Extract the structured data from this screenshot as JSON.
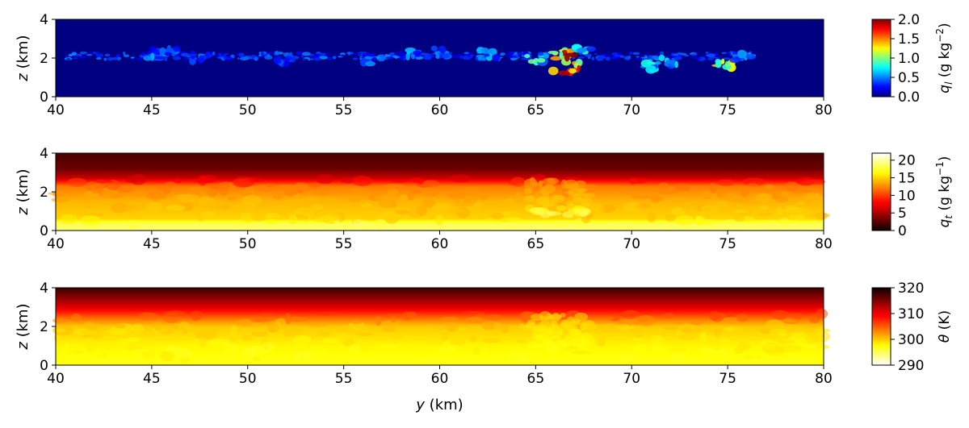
{
  "chart_data": [
    {
      "type": "heatmap",
      "field": "liquid water mixing ratio",
      "x_ticks": [
        40,
        45,
        50,
        55,
        60,
        65,
        70,
        75,
        80
      ],
      "xlim": [
        40,
        80
      ],
      "ylim": [
        0,
        4
      ],
      "y_ticks": [
        0,
        2,
        4
      ],
      "y_label_parts": [
        "z",
        " (km)"
      ],
      "colorbar": {
        "colormap": "jet",
        "range": [
          0.0,
          2.0
        ],
        "ticks": [
          "0.0",
          "0.5",
          "1.0",
          "1.5",
          "2.0"
        ],
        "label_symbol": "q",
        "label_sub": "l",
        "label_units": " (g kg",
        "label_exp": "−2",
        "label_close": ")"
      },
      "background_value": 0.0,
      "cloud_layer_height_km": 2.1,
      "cloud_events": [
        {
          "y": 45.0,
          "z": 2.2,
          "value": 0.6
        },
        {
          "y": 46.0,
          "z": 2.3,
          "value": 0.5
        },
        {
          "y": 47.5,
          "z": 2.0,
          "value": 0.4
        },
        {
          "y": 52.0,
          "z": 1.9,
          "value": 0.4
        },
        {
          "y": 56.5,
          "z": 1.9,
          "value": 0.5
        },
        {
          "y": 58.5,
          "z": 2.2,
          "value": 0.6
        },
        {
          "y": 60.0,
          "z": 2.3,
          "value": 0.5
        },
        {
          "y": 62.5,
          "z": 2.2,
          "value": 0.6
        },
        {
          "y": 65.0,
          "z": 2.0,
          "value": 0.9
        },
        {
          "y": 66.5,
          "z": 1.8,
          "value": 1.9
        },
        {
          "y": 67.5,
          "z": 2.4,
          "value": 0.8
        },
        {
          "y": 71.0,
          "z": 1.6,
          "value": 0.8
        },
        {
          "y": 72.0,
          "z": 1.8,
          "value": 0.7
        },
        {
          "y": 74.8,
          "z": 1.7,
          "value": 1.3
        },
        {
          "y": 75.8,
          "z": 2.0,
          "value": 0.6
        }
      ]
    },
    {
      "type": "heatmap",
      "field": "total water mixing ratio",
      "x_ticks": [
        40,
        45,
        50,
        55,
        60,
        65,
        70,
        75,
        80
      ],
      "xlim": [
        40,
        80
      ],
      "ylim": [
        0,
        4
      ],
      "y_ticks": [
        0,
        2,
        4
      ],
      "y_label_parts": [
        "z",
        " (km)"
      ],
      "colorbar": {
        "colormap": "hot",
        "range": [
          0,
          22
        ],
        "ticks": [
          "0",
          "5",
          "10",
          "15",
          "20"
        ],
        "label_symbol": "q",
        "label_sub": "t",
        "label_units": " (g kg",
        "label_exp": "−1",
        "label_close": ")"
      },
      "profile": [
        {
          "z": 0.0,
          "value": 19
        },
        {
          "z": 0.4,
          "value": 18
        },
        {
          "z": 0.6,
          "value": 15
        },
        {
          "z": 1.5,
          "value": 14
        },
        {
          "z": 2.3,
          "value": 12
        },
        {
          "z": 2.7,
          "value": 6
        },
        {
          "z": 3.2,
          "value": 3
        },
        {
          "z": 4.0,
          "value": 2
        }
      ]
    },
    {
      "type": "heatmap",
      "field": "potential temperature",
      "x_ticks": [
        40,
        45,
        50,
        55,
        60,
        65,
        70,
        75,
        80
      ],
      "xlim": [
        40,
        80
      ],
      "ylim": [
        0,
        4
      ],
      "y_ticks": [
        0,
        2,
        4
      ],
      "y_label_parts": [
        "z",
        " (km)"
      ],
      "x_label_parts": [
        "y",
        " (km)"
      ],
      "colorbar": {
        "colormap": "hot_r",
        "range": [
          290,
          320
        ],
        "ticks": [
          "290",
          "300",
          "310",
          "320"
        ],
        "label_symbol": "θ",
        "label_sub": "",
        "label_units": " (K)",
        "label_exp": "",
        "label_close": ""
      },
      "profile": [
        {
          "z": 0.0,
          "value": 297
        },
        {
          "z": 1.0,
          "value": 298
        },
        {
          "z": 2.0,
          "value": 300
        },
        {
          "z": 2.5,
          "value": 305
        },
        {
          "z": 3.0,
          "value": 311
        },
        {
          "z": 4.0,
          "value": 318
        }
      ]
    }
  ]
}
